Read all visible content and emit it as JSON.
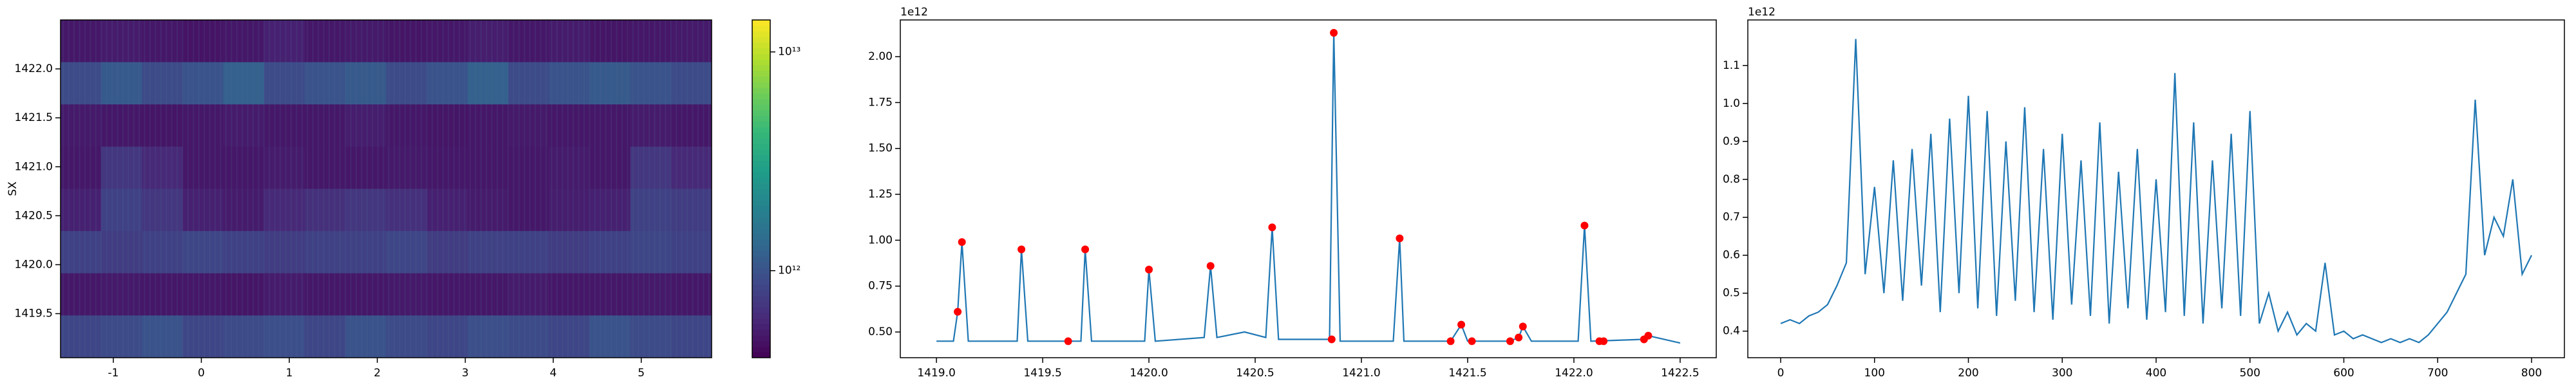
{
  "chart_data": [
    {
      "type": "heatmap",
      "ylabel": "SX",
      "colormap": "viridis",
      "xlim": [
        -1.6,
        5.8
      ],
      "ylim": [
        1419.05,
        1422.5
      ],
      "xticks": [
        -1,
        0,
        1,
        2,
        3,
        4,
        5
      ],
      "yticks": [
        1419.5,
        {
          "value": 1420,
          "label": "1420.0"
        },
        1420.5,
        {
          "value": 1421,
          "label": "1421.0"
        },
        1421.5,
        {
          "value": 1422,
          "label": "1422.0"
        }
      ],
      "z": [
        [
          500000000000.0,
          520000000000.0,
          500000000000.0,
          480000000000.0,
          500000000000.0,
          550000000000.0,
          500000000000.0,
          510000000000.0,
          490000000000.0,
          500000000000.0,
          530000000000.0,
          500000000000.0,
          520000000000.0,
          490000000000.0,
          500000000000.0,
          510000000000.0
        ],
        [
          900000000000.0,
          1100000000000.0,
          900000000000.0,
          1000000000000.0,
          1200000000000.0,
          900000000000.0,
          1000000000000.0,
          1100000000000.0,
          900000000000.0,
          1000000000000.0,
          1200000000000.0,
          900000000000.0,
          1000000000000.0,
          1100000000000.0,
          1000000000000.0,
          900000000000.0
        ],
        [
          510000000000.0,
          500000000000.0,
          490000000000.0,
          500000000000.0,
          520000000000.0,
          500000000000.0,
          500000000000.0,
          530000000000.0,
          500000000000.0,
          490000000000.0,
          500000000000.0,
          510000000000.0,
          500000000000.0,
          500000000000.0,
          520000000000.0,
          500000000000.0
        ],
        [
          500000000000.0,
          700000000000.0,
          600000000000.0,
          500000000000.0,
          500000000000.0,
          520000000000.0,
          500000000000.0,
          500000000000.0,
          510000000000.0,
          500000000000.0,
          500000000000.0,
          500000000000.0,
          520000000000.0,
          500000000000.0,
          700000000000.0,
          600000000000.0
        ],
        [
          550000000000.0,
          800000000000.0,
          700000000000.0,
          550000000000.0,
          520000000000.0,
          600000000000.0,
          650000000000.0,
          700000000000.0,
          650000000000.0,
          550000000000.0,
          520000000000.0,
          500000000000.0,
          530000000000.0,
          550000000000.0,
          800000000000.0,
          750000000000.0
        ],
        [
          800000000000.0,
          750000000000.0,
          800000000000.0,
          850000000000.0,
          800000000000.0,
          750000000000.0,
          800000000000.0,
          800000000000.0,
          850000000000.0,
          750000000000.0,
          800000000000.0,
          800000000000.0,
          750000000000.0,
          800000000000.0,
          850000000000.0,
          800000000000.0
        ],
        [
          500000000000.0,
          510000000000.0,
          500000000000.0,
          500000000000.0,
          490000000000.0,
          520000000000.0,
          500000000000.0,
          500000000000.0,
          510000000000.0,
          500000000000.0,
          500000000000.0,
          520000000000.0,
          500000000000.0,
          500000000000.0,
          510000000000.0,
          500000000000.0
        ],
        [
          850000000000.0,
          900000000000.0,
          1000000000000.0,
          850000000000.0,
          900000000000.0,
          950000000000.0,
          850000000000.0,
          1000000000000.0,
          900000000000.0,
          850000000000.0,
          950000000000.0,
          900000000000.0,
          850000000000.0,
          1000000000000.0,
          900000000000.0,
          850000000000.0
        ]
      ],
      "colorbar": {
        "scale": "log",
        "lim": [
          400000000000.0,
          14000000000000.0
        ],
        "ticks": [
          {
            "value": 1000000000000.0,
            "label": "10¹²"
          },
          {
            "value": 10000000000000.0,
            "label": "10¹³"
          }
        ]
      }
    },
    {
      "type": "line",
      "offset_text": "1e12",
      "xlim": [
        1418.83,
        1422.67
      ],
      "ylim": [
        0.36,
        2.2
      ],
      "xticks": [
        {
          "value": 1419,
          "label": "1419.0"
        },
        1419.5,
        {
          "value": 1420,
          "label": "1420.0"
        },
        1420.5,
        {
          "value": 1421,
          "label": "1421.0"
        },
        1421.5,
        {
          "value": 1422,
          "label": "1422.0"
        },
        1422.5
      ],
      "yticks": [
        {
          "value": 0.5,
          "label": "0.50"
        },
        0.75,
        {
          "value": 1,
          "label": "1.00"
        },
        1.25,
        {
          "value": 1.5,
          "label": "1.50"
        },
        1.75,
        {
          "value": 2,
          "label": "2.00"
        }
      ],
      "series": [
        {
          "type": "line",
          "color": "#1f77b4",
          "x": [
            1419.0,
            1419.08,
            1419.1,
            1419.12,
            1419.15,
            1419.38,
            1419.4,
            1419.43,
            1419.68,
            1419.7,
            1419.73,
            1419.98,
            1420.0,
            1420.03,
            1420.26,
            1420.29,
            1420.32,
            1420.45,
            1420.55,
            1420.58,
            1420.61,
            1420.85,
            1420.87,
            1420.9,
            1421.15,
            1421.18,
            1421.2,
            1421.42,
            1421.47,
            1421.5,
            1421.7,
            1421.74,
            1421.76,
            1421.8,
            1422.02,
            1422.05,
            1422.08,
            1422.33,
            1422.35,
            1422.5
          ],
          "values": [
            0.45,
            0.45,
            0.61,
            0.99,
            0.45,
            0.45,
            0.95,
            0.45,
            0.45,
            0.95,
            0.45,
            0.45,
            0.84,
            0.45,
            0.47,
            0.86,
            0.47,
            0.5,
            0.47,
            1.07,
            0.46,
            0.46,
            2.13,
            0.45,
            0.45,
            1.01,
            0.45,
            0.45,
            0.54,
            0.45,
            0.45,
            0.47,
            0.53,
            0.45,
            0.45,
            1.08,
            0.45,
            0.46,
            0.48,
            0.44
          ]
        },
        {
          "type": "scatter",
          "color": "red",
          "x": [
            1419.1,
            1419.12,
            1419.4,
            1419.62,
            1419.7,
            1420.0,
            1420.29,
            1420.58,
            1420.86,
            1420.87,
            1421.18,
            1421.42,
            1421.47,
            1421.52,
            1421.7,
            1421.74,
            1421.76,
            1422.05,
            1422.12,
            1422.14,
            1422.33,
            1422.35
          ],
          "values": [
            0.61,
            0.99,
            0.95,
            0.45,
            0.95,
            0.84,
            0.86,
            1.07,
            0.46,
            2.13,
            1.01,
            0.45,
            0.54,
            0.45,
            0.45,
            0.47,
            0.53,
            1.08,
            0.45,
            0.45,
            0.46,
            0.48
          ]
        }
      ]
    },
    {
      "type": "line",
      "offset_text": "1e12",
      "xlim": [
        -35,
        835
      ],
      "ylim": [
        0.33,
        1.22
      ],
      "xticks": [
        0,
        100,
        200,
        300,
        400,
        500,
        600,
        700,
        800
      ],
      "yticks": [
        0.4,
        0.5,
        0.6,
        0.7,
        0.8,
        0.9,
        {
          "value": 1,
          "label": "1.0"
        },
        1.1
      ],
      "series": [
        {
          "type": "line",
          "color": "#1f77b4",
          "x": [
            0,
            10,
            20,
            30,
            40,
            50,
            60,
            70,
            80,
            90,
            100,
            110,
            120,
            130,
            140,
            150,
            160,
            170,
            180,
            190,
            200,
            210,
            220,
            230,
            240,
            250,
            260,
            270,
            280,
            290,
            300,
            310,
            320,
            330,
            340,
            350,
            360,
            370,
            380,
            390,
            400,
            410,
            420,
            430,
            440,
            450,
            460,
            470,
            480,
            490,
            500,
            510,
            520,
            530,
            540,
            550,
            560,
            570,
            580,
            590,
            600,
            610,
            620,
            630,
            640,
            650,
            660,
            670,
            680,
            690,
            700,
            710,
            720,
            730,
            740,
            750,
            760,
            770,
            780,
            790,
            800
          ],
          "values": [
            0.42,
            0.43,
            0.42,
            0.44,
            0.45,
            0.47,
            0.52,
            0.58,
            1.17,
            0.55,
            0.78,
            0.5,
            0.85,
            0.48,
            0.88,
            0.52,
            0.92,
            0.45,
            0.96,
            0.5,
            1.02,
            0.46,
            0.98,
            0.44,
            0.9,
            0.48,
            0.99,
            0.45,
            0.88,
            0.43,
            0.92,
            0.47,
            0.85,
            0.44,
            0.95,
            0.42,
            0.82,
            0.46,
            0.88,
            0.43,
            0.8,
            0.45,
            1.08,
            0.44,
            0.95,
            0.42,
            0.85,
            0.46,
            0.92,
            0.44,
            0.98,
            0.42,
            0.5,
            0.4,
            0.45,
            0.39,
            0.42,
            0.4,
            0.58,
            0.39,
            0.4,
            0.38,
            0.39,
            0.38,
            0.37,
            0.38,
            0.37,
            0.38,
            0.37,
            0.39,
            0.42,
            0.45,
            0.5,
            0.55,
            1.01,
            0.6,
            0.7,
            0.65,
            0.8,
            0.55,
            0.6
          ]
        }
      ]
    }
  ]
}
